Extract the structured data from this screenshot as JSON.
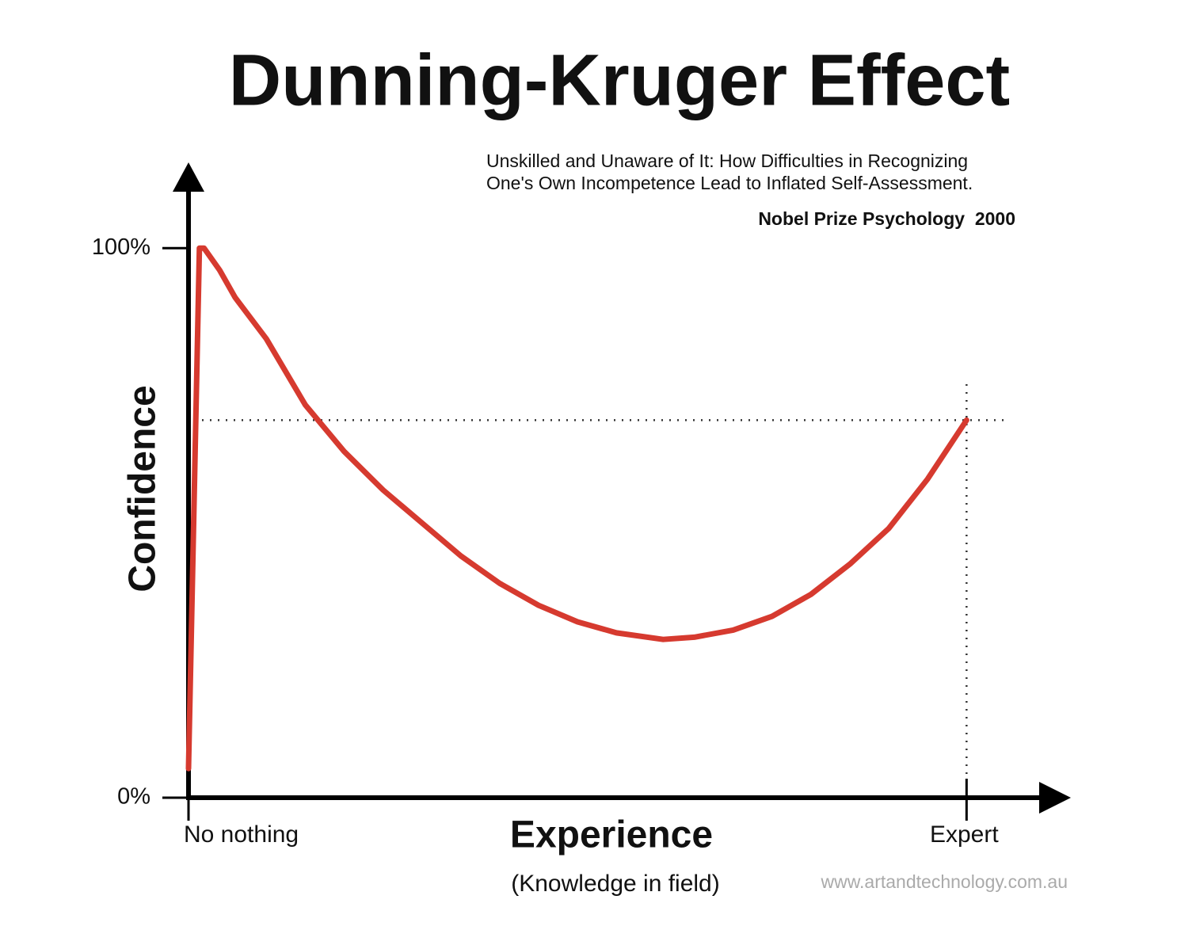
{
  "chart_data": {
    "type": "line",
    "title": "Dunning-Kruger Effect",
    "subtitle": [
      "Unskilled and Unaware of It: How Difficulties in Recognizing",
      "One's Own Incompetence Lead to Inflated Self-Assessment."
    ],
    "note": "Nobel Prize Psychology  2000",
    "y_label": "Confidence",
    "x_label": "Experience",
    "x_sublabel": "(Knowledge in field)",
    "source": "www.artandtechnology.com.au",
    "xlim": [
      0,
      113.2
    ],
    "ylim": [
      0,
      115.6
    ],
    "xticks": [
      {
        "value": 0,
        "label": "No nothing"
      },
      {
        "value": 100,
        "label": "Expert"
      }
    ],
    "yticks": [
      {
        "value": 0,
        "label": "0%"
      },
      {
        "value": 100,
        "label": "100%"
      }
    ],
    "reference_lines": {
      "y": 68.7,
      "x": 100
    },
    "series": [
      {
        "color": "#d63a2f",
        "x": [
          0,
          1.4,
          2,
          4,
          6,
          10,
          15,
          20,
          25,
          30,
          35,
          40,
          45,
          50,
          55,
          61,
          65,
          70,
          75,
          80,
          85,
          90,
          95,
          100
        ],
        "values": [
          5.3,
          100,
          100,
          96,
          91,
          83.5,
          71.5,
          63,
          56,
          50,
          44,
          39,
          35,
          32,
          30,
          28.8,
          29.2,
          30.5,
          33,
          37,
          42.5,
          49,
          58,
          68.7
        ]
      }
    ]
  }
}
